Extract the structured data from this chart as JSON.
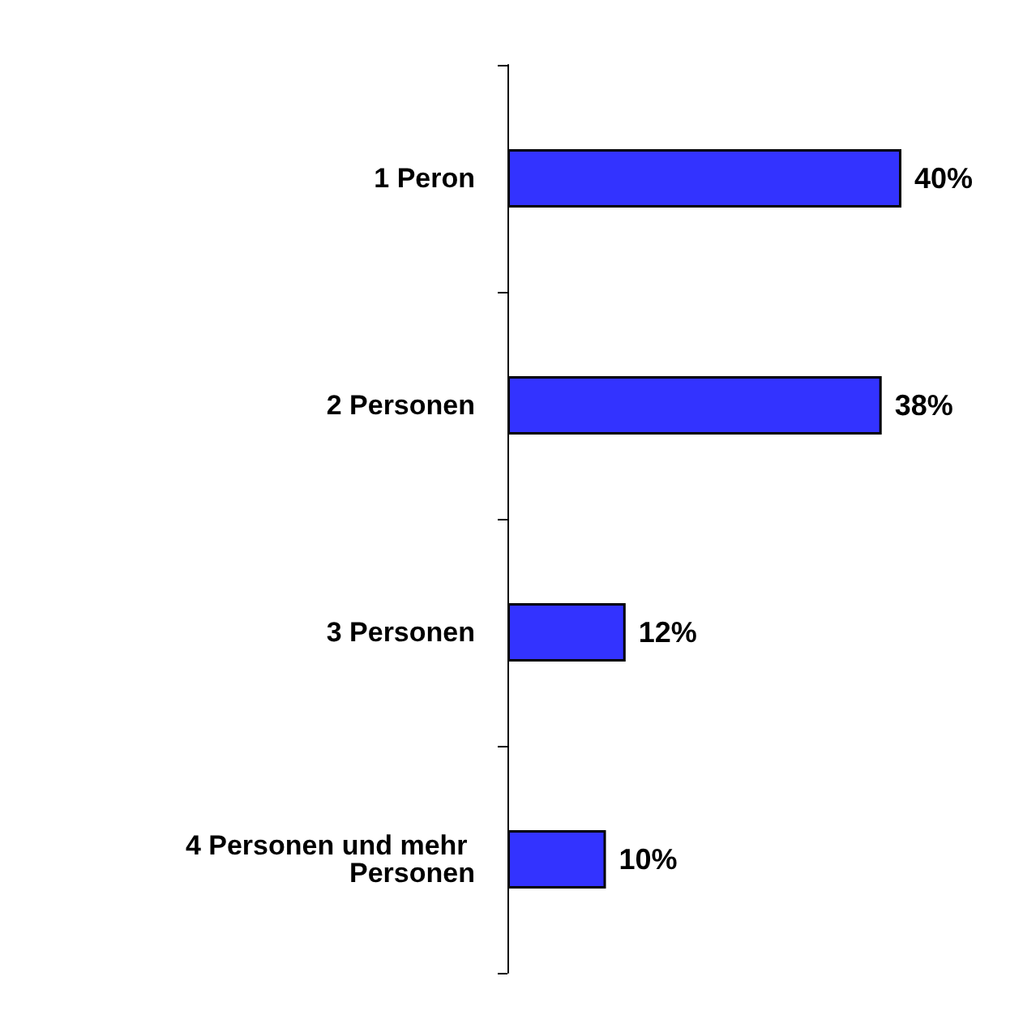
{
  "chart_data": {
    "type": "bar",
    "orientation": "horizontal",
    "categories": [
      "1 Peron",
      "2 Personen",
      "3 Personen",
      "4 Personen und mehr Personen"
    ],
    "values": [
      40,
      38,
      12,
      10
    ],
    "value_labels": [
      "40%",
      "38%",
      "12%",
      "10%"
    ],
    "color": "#3333ff"
  }
}
